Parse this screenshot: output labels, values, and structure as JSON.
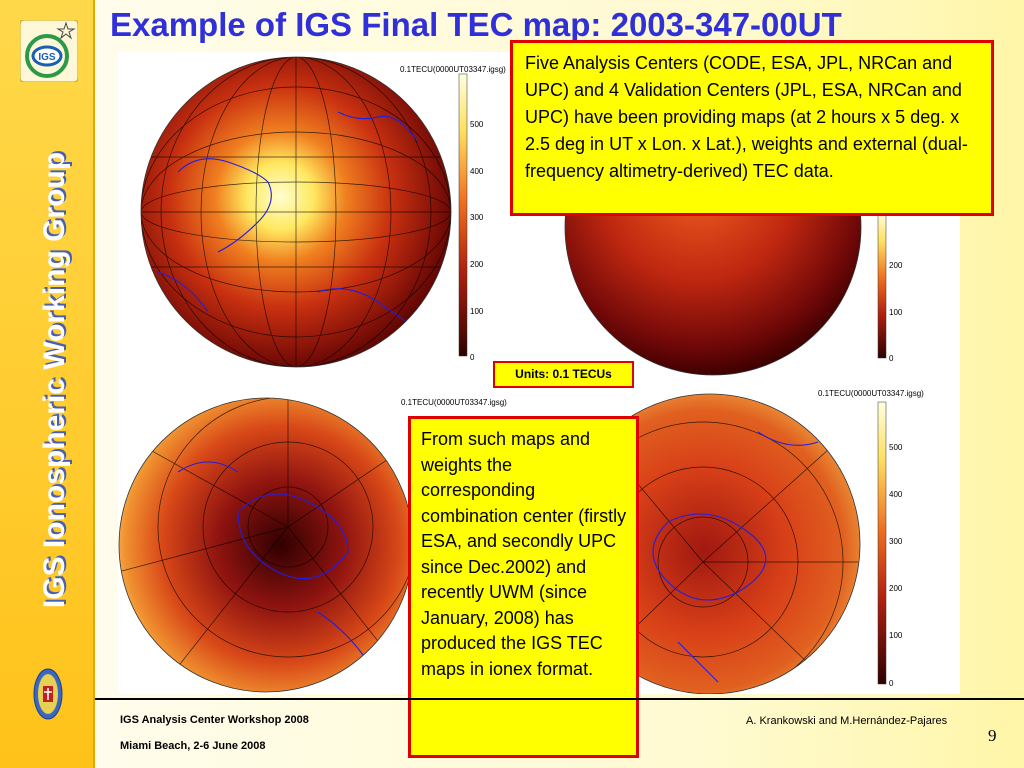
{
  "slide": {
    "title": "Example of IGS Final TEC map: 2003-347-00UT",
    "side_title": "IGS Ionospheric Working Group",
    "logo_text": "IGS"
  },
  "maps": [
    {
      "label": "0.1TECU(0000UT03347.igsg)",
      "ticks": [
        "500",
        "400",
        "300",
        "200",
        "100",
        "0"
      ]
    },
    {
      "label": "",
      "ticks": [
        "200",
        "100",
        "0"
      ]
    },
    {
      "label": "0.1TECU(0000UT03347.igsg)",
      "ticks": []
    },
    {
      "label": "0.1TECU(0000UT03347.igsg)",
      "ticks": [
        "500",
        "400",
        "300",
        "200",
        "100",
        "0"
      ]
    }
  ],
  "units_label": "Units: 0.1 TECUs",
  "callout_top": "Five Analysis Centers (CODE, ESA, JPL, NRCan and UPC) and 4 Validation Centers (JPL, ESA, NRCan and UPC) have been providing  maps (at 2 hours x 5 deg. x 2.5 deg in UT x Lon. x Lat.), weights and external (dual-frequency altimetry-derived) TEC data.",
  "callout_bottom": "From such maps and weights the corresponding combination center (firstly ESA, and secondly UPC since Dec.2002) and recently UWM (since January, 2008) has produced the IGS TEC maps in ionex format.",
  "footer": {
    "left_line1": "IGS Analysis Center Workshop 2008",
    "left_line2": "Miami Beach, 2-6 June 2008",
    "right": "A. Krankowski and M.Hernández-Pajares",
    "page_number": "9"
  },
  "colors": {
    "title": "#3030d8",
    "callout_bg": "#ffff00",
    "callout_border": "#e00000",
    "sidebar": "#ffc21a"
  }
}
